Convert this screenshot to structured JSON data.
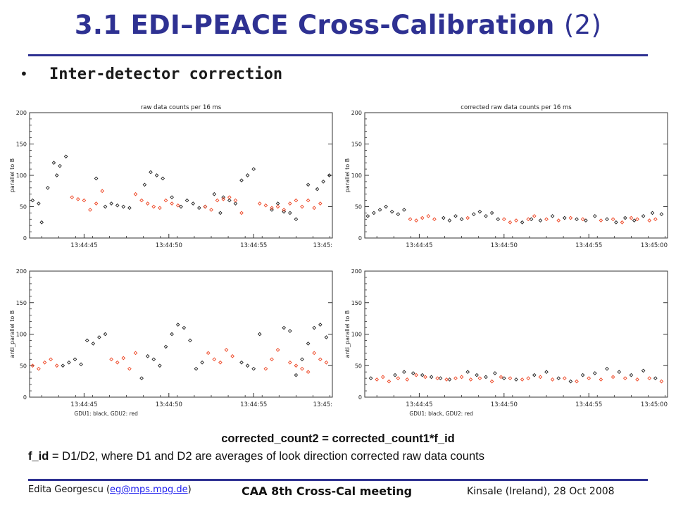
{
  "title": {
    "number": "3.1",
    "main": "EDI–PEACE Cross-Calibration",
    "suffix": "(2)"
  },
  "bullet": {
    "marker": "•",
    "text": "Inter-detector correction"
  },
  "chart_data": [
    {
      "type": "scatter",
      "title": "raw data counts per 16 ms",
      "ylabel": "parallel to B",
      "xlabel": "",
      "xticks": [
        "13:44:45",
        "13:44:50",
        "13:44:55",
        "13:45:"
      ],
      "xtick_pos": [
        0.18,
        0.46,
        0.74,
        1.0
      ],
      "ylim": [
        0,
        200
      ],
      "yticks": [
        0,
        50,
        100,
        150,
        200
      ],
      "grid": false,
      "series": [
        {
          "color": "#222222",
          "marker": "diamond",
          "x": [
            0.01,
            0.03,
            0.06,
            0.08,
            0.1,
            0.12,
            0.25,
            0.27,
            0.29,
            0.31,
            0.33,
            0.38,
            0.4,
            0.42,
            0.44,
            0.52,
            0.54,
            0.56,
            0.58,
            0.61,
            0.64,
            0.66,
            0.68,
            0.7,
            0.72,
            0.74,
            0.8,
            0.82,
            0.84,
            0.86,
            0.88,
            0.92,
            0.95,
            0.97,
            0.99,
            0.04,
            0.09,
            0.22,
            0.47,
            0.5,
            0.63
          ],
          "y": [
            60,
            55,
            80,
            120,
            115,
            130,
            50,
            55,
            52,
            50,
            48,
            85,
            105,
            100,
            95,
            60,
            55,
            48,
            50,
            70,
            65,
            60,
            55,
            92,
            100,
            110,
            45,
            55,
            42,
            40,
            30,
            85,
            78,
            90,
            100,
            25,
            100,
            95,
            65,
            50,
            40
          ]
        },
        {
          "color": "#ee4422",
          "marker": "diamond",
          "x": [
            0.14,
            0.16,
            0.18,
            0.2,
            0.22,
            0.24,
            0.35,
            0.37,
            0.39,
            0.41,
            0.43,
            0.45,
            0.47,
            0.49,
            0.58,
            0.6,
            0.62,
            0.64,
            0.66,
            0.68,
            0.7,
            0.76,
            0.78,
            0.8,
            0.82,
            0.84,
            0.86,
            0.88,
            0.9,
            0.92,
            0.94,
            0.96
          ],
          "y": [
            65,
            62,
            60,
            45,
            55,
            75,
            70,
            60,
            55,
            50,
            48,
            60,
            55,
            52,
            50,
            45,
            60,
            62,
            65,
            60,
            40,
            55,
            52,
            48,
            50,
            45,
            55,
            60,
            50,
            60,
            48,
            55
          ]
        }
      ]
    },
    {
      "type": "scatter",
      "title": "corrected raw data counts per 16 ms",
      "ylabel": "parallel to B",
      "xlabel": "",
      "xticks": [
        "13:44:45",
        "13:44:50",
        "13:44:55",
        "13:45:00"
      ],
      "xtick_pos": [
        0.18,
        0.46,
        0.74,
        1.0
      ],
      "ylim": [
        0,
        200
      ],
      "yticks": [
        0,
        50,
        100,
        150,
        200
      ],
      "grid": false,
      "series": [
        {
          "color": "#222222",
          "marker": "diamond",
          "x": [
            0.01,
            0.03,
            0.05,
            0.07,
            0.09,
            0.11,
            0.13,
            0.26,
            0.28,
            0.3,
            0.32,
            0.36,
            0.38,
            0.4,
            0.42,
            0.44,
            0.52,
            0.55,
            0.58,
            0.62,
            0.66,
            0.7,
            0.73,
            0.76,
            0.8,
            0.83,
            0.86,
            0.89,
            0.92,
            0.95,
            0.98
          ],
          "y": [
            35,
            40,
            45,
            50,
            42,
            38,
            45,
            32,
            28,
            35,
            30,
            38,
            42,
            35,
            40,
            30,
            25,
            30,
            28,
            35,
            32,
            30,
            28,
            35,
            30,
            25,
            32,
            28,
            35,
            40,
            38
          ]
        },
        {
          "color": "#ee4422",
          "marker": "diamond",
          "x": [
            0.15,
            0.17,
            0.19,
            0.21,
            0.23,
            0.34,
            0.46,
            0.48,
            0.5,
            0.54,
            0.56,
            0.6,
            0.64,
            0.68,
            0.72,
            0.78,
            0.82,
            0.85,
            0.88,
            0.9,
            0.94,
            0.96
          ],
          "y": [
            30,
            28,
            32,
            35,
            30,
            32,
            30,
            25,
            28,
            30,
            35,
            30,
            28,
            32,
            30,
            28,
            30,
            25,
            32,
            30,
            28,
            30
          ]
        }
      ]
    },
    {
      "type": "scatter",
      "title": "",
      "ylabel": "anti_parallel to B",
      "xlabel": "GDU1: black, GDU2: red",
      "xticks": [
        "13:44:45",
        "13:44:50",
        "13:44:55",
        "13:45:"
      ],
      "xtick_pos": [
        0.18,
        0.46,
        0.74,
        1.0
      ],
      "ylim": [
        0,
        200
      ],
      "yticks": [
        0,
        50,
        100,
        150,
        200
      ],
      "grid": false,
      "series": [
        {
          "color": "#222222",
          "marker": "diamond",
          "x": [
            0.11,
            0.13,
            0.15,
            0.17,
            0.19,
            0.21,
            0.23,
            0.25,
            0.37,
            0.39,
            0.41,
            0.43,
            0.45,
            0.47,
            0.49,
            0.51,
            0.53,
            0.55,
            0.57,
            0.7,
            0.72,
            0.74,
            0.76,
            0.84,
            0.86,
            0.88,
            0.9,
            0.92,
            0.94,
            0.96,
            0.98
          ],
          "y": [
            50,
            55,
            60,
            52,
            90,
            85,
            95,
            100,
            30,
            65,
            60,
            50,
            80,
            100,
            115,
            110,
            90,
            45,
            55,
            55,
            50,
            45,
            100,
            110,
            105,
            35,
            60,
            85,
            110,
            115,
            95
          ]
        },
        {
          "color": "#ee4422",
          "marker": "diamond",
          "x": [
            0.01,
            0.03,
            0.05,
            0.07,
            0.09,
            0.27,
            0.29,
            0.31,
            0.33,
            0.35,
            0.59,
            0.61,
            0.63,
            0.65,
            0.67,
            0.78,
            0.8,
            0.82,
            0.86,
            0.88,
            0.9,
            0.92,
            0.94,
            0.96,
            0.98
          ],
          "y": [
            50,
            45,
            55,
            60,
            50,
            60,
            55,
            62,
            45,
            70,
            70,
            60,
            55,
            75,
            65,
            45,
            60,
            75,
            55,
            50,
            45,
            40,
            70,
            60,
            55
          ]
        }
      ]
    },
    {
      "type": "scatter",
      "title": "",
      "ylabel": "anti_parallel to B",
      "xlabel": "GDU1: black, GDU2: red",
      "xticks": [
        "13:44:45",
        "13:44:50",
        "13:44:55",
        "13:45:00"
      ],
      "xtick_pos": [
        0.18,
        0.46,
        0.74,
        1.0
      ],
      "ylim": [
        0,
        200
      ],
      "yticks": [
        0,
        50,
        100,
        150,
        200
      ],
      "grid": false,
      "series": [
        {
          "color": "#222222",
          "marker": "diamond",
          "x": [
            0.02,
            0.1,
            0.13,
            0.16,
            0.19,
            0.22,
            0.25,
            0.28,
            0.34,
            0.37,
            0.4,
            0.43,
            0.46,
            0.5,
            0.56,
            0.6,
            0.64,
            0.68,
            0.72,
            0.76,
            0.8,
            0.84,
            0.88,
            0.92,
            0.96
          ],
          "y": [
            30,
            35,
            40,
            38,
            35,
            32,
            30,
            28,
            40,
            35,
            32,
            38,
            30,
            28,
            35,
            40,
            30,
            25,
            35,
            38,
            45,
            40,
            35,
            42,
            30
          ]
        },
        {
          "color": "#ee4422",
          "marker": "diamond",
          "x": [
            0.04,
            0.06,
            0.08,
            0.11,
            0.14,
            0.17,
            0.2,
            0.24,
            0.27,
            0.3,
            0.32,
            0.35,
            0.38,
            0.42,
            0.45,
            0.48,
            0.52,
            0.54,
            0.58,
            0.62,
            0.66,
            0.7,
            0.74,
            0.78,
            0.82,
            0.86,
            0.9,
            0.94,
            0.98
          ],
          "y": [
            28,
            32,
            25,
            30,
            28,
            35,
            32,
            30,
            28,
            30,
            32,
            28,
            30,
            25,
            32,
            30,
            28,
            30,
            32,
            28,
            30,
            25,
            30,
            28,
            32,
            30,
            28,
            30,
            25
          ]
        }
      ]
    }
  ],
  "formula": {
    "line1": "corrected_count2 = corrected_count1*f_id",
    "line2_bold": "f_id",
    "line2_rest": " = D1/D2, where D1 and D2 are averages of look direction corrected raw data counts"
  },
  "footer": {
    "author_prefix": "Edita Georgescu (",
    "email": "eg@mps.mpg.de",
    "author_suffix": ")",
    "meeting": "CAA 8th Cross-Cal meeting",
    "place": "Kinsale (Ireland), 28 Oct 2008"
  },
  "colors": {
    "title": "#2e3192",
    "rule": "#2e3192",
    "gdu1": "#222222",
    "gdu2": "#ee4422",
    "link": "#2020ee"
  }
}
